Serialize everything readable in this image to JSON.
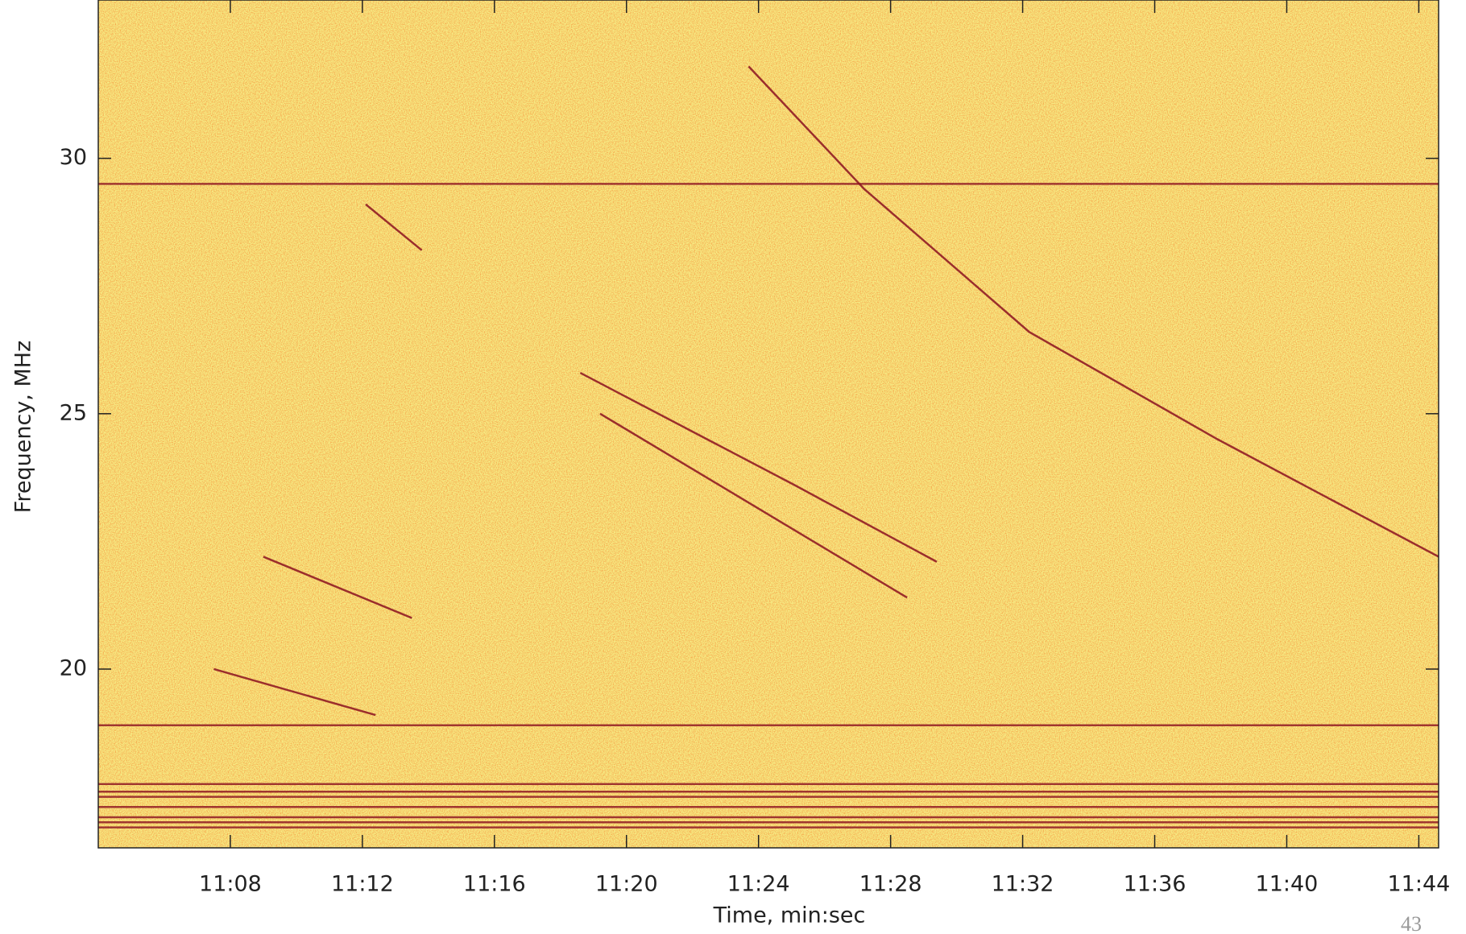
{
  "chart_data": {
    "type": "spectrogram",
    "xlabel": "Time, min:sec",
    "ylabel": "Frequency, MHz",
    "xlim": [
      664,
      704.6
    ],
    "xticks": [
      {
        "value": 668,
        "label": "11:08"
      },
      {
        "value": 672,
        "label": "11:12"
      },
      {
        "value": 676,
        "label": "11:16"
      },
      {
        "value": 680,
        "label": "11:20"
      },
      {
        "value": 684,
        "label": "11:24"
      },
      {
        "value": 688,
        "label": "11:28"
      },
      {
        "value": 692,
        "label": "11:32"
      },
      {
        "value": 696,
        "label": "11:36"
      },
      {
        "value": 700,
        "label": "11:40"
      },
      {
        "value": 704,
        "label": "11:44"
      }
    ],
    "ylim": [
      16.5,
      33.1
    ],
    "yticks": [
      20,
      25,
      30
    ],
    "color": "#8b1020",
    "bursts": [
      {
        "x": [
          683.7,
          687.2,
          692.2,
          697.9,
          704.6
        ],
        "values": [
          31.8,
          29.4,
          26.6,
          24.5,
          22.2
        ]
      },
      {
        "x": [
          678.6,
          685.1,
          689.4
        ],
        "values": [
          25.8,
          23.6,
          22.1
        ]
      },
      {
        "x": [
          679.2,
          688.5
        ],
        "values": [
          25.0,
          21.4
        ]
      },
      {
        "x": [
          669.0,
          673.5
        ],
        "values": [
          22.2,
          21.0
        ]
      },
      {
        "x": [
          667.5,
          672.4
        ],
        "values": [
          20.0,
          19.1
        ]
      },
      {
        "x": [
          672.1,
          673.8
        ],
        "values": [
          29.1,
          28.2
        ]
      }
    ],
    "bands": [
      17.75,
      17.6,
      17.5,
      17.3,
      17.1,
      17.0,
      16.9,
      18.9,
      29.5
    ]
  },
  "page_number": "43"
}
